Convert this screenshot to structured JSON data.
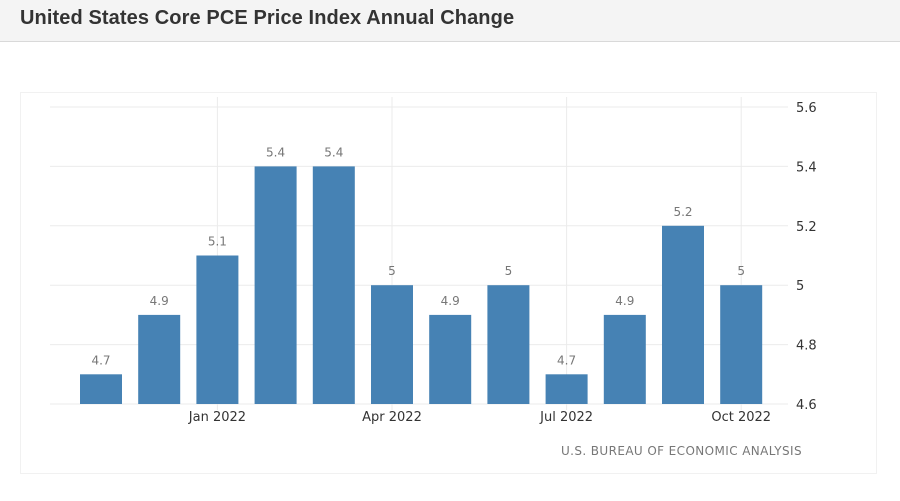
{
  "header": {
    "title": "United States Core PCE Price Index Annual Change"
  },
  "source": "U.S. BUREAU OF ECONOMIC ANALYSIS",
  "colors": {
    "bar": "#4682b4",
    "grid": "#ebebeb",
    "label": "#777777",
    "axis_text": "#333333"
  },
  "chart_data": {
    "type": "bar",
    "title": "United States Core PCE Price Index Annual Change",
    "xlabel": "",
    "ylabel": "",
    "categories": [
      "Nov 2021",
      "Dec 2021",
      "Jan 2022",
      "Feb 2022",
      "Mar 2022",
      "Apr 2022",
      "May 2022",
      "Jun 2022",
      "Jul 2022",
      "Aug 2022",
      "Sep 2022",
      "Oct 2022"
    ],
    "values": [
      4.7,
      4.9,
      5.1,
      5.4,
      5.4,
      5,
      4.9,
      5,
      4.7,
      4.9,
      5.2,
      5
    ],
    "data_labels": [
      "4.7",
      "4.9",
      "5.1",
      "5.4",
      "5.4",
      "5",
      "4.9",
      "5",
      "4.7",
      "4.9",
      "5.2",
      "5"
    ],
    "x_tick_labels": [
      {
        "category": "Jan 2022",
        "label": "Jan 2022"
      },
      {
        "category": "Apr 2022",
        "label": "Apr 2022"
      },
      {
        "category": "Jul 2022",
        "label": "Jul 2022"
      },
      {
        "category": "Oct 2022",
        "label": "Oct 2022"
      }
    ],
    "y_ticks": [
      4.6,
      4.8,
      5,
      5.2,
      5.4,
      5.6
    ],
    "y_tick_labels": [
      "4.6",
      "4.8",
      "5",
      "5.2",
      "5.4",
      "5.6"
    ],
    "ylim": [
      4.6,
      5.6
    ],
    "y_axis_position": "right",
    "grid": true,
    "legend": "none",
    "source": "U.S. BUREAU OF ECONOMIC ANALYSIS"
  }
}
